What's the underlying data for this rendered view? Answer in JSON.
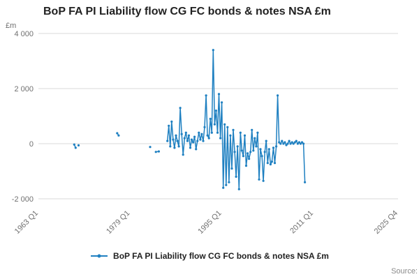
{
  "header": {
    "title": "BoP FA PI Liability flow CG FC bonds & notes NSA £m"
  },
  "legend": {
    "label": "BoP FA PI Liability flow CG FC bonds & notes NSA £m"
  },
  "footer": {
    "source_label": "Source:"
  },
  "chart_data": {
    "type": "line",
    "title": "BoP FA PI Liability flow CG FC bonds & notes NSA £m",
    "xlabel": "",
    "ylabel": "£m",
    "color": "#1f80c1",
    "grid_color": "#d9d9d9",
    "tick_text_color": "#707070",
    "x_domain": [
      1963,
      2025.75
    ],
    "ylim": [
      -2000,
      4000
    ],
    "legend_position": "bottom",
    "grid": "horizontal",
    "x_ticks": [
      {
        "v": 1963,
        "label": "1963 Q1"
      },
      {
        "v": 1979,
        "label": "1979 Q1"
      },
      {
        "v": 1995,
        "label": "1995 Q1"
      },
      {
        "v": 2011,
        "label": "2011 Q1"
      },
      {
        "v": 2025.75,
        "label": "2025 Q4"
      }
    ],
    "y_ticks": [
      {
        "v": 4000,
        "label": "4 000"
      },
      {
        "v": 2000,
        "label": "2 000"
      },
      {
        "v": 0,
        "label": "0"
      },
      {
        "v": -2000,
        "label": "-2 000"
      }
    ],
    "series_name": "BoP FA PI Liability flow CG FC bonds & notes NSA £m",
    "segments": [
      [
        [
          1969.25,
          -30
        ],
        [
          1969.5,
          -150
        ]
      ],
      [
        [
          1970.0,
          -60
        ]
      ],
      [
        [
          1976.75,
          380
        ],
        [
          1977.0,
          300
        ]
      ],
      [
        [
          1982.5,
          -120
        ]
      ],
      [
        [
          1983.5,
          -300
        ],
        [
          1984.0,
          -280
        ]
      ],
      [
        [
          1985.5,
          100
        ],
        [
          1985.75,
          650
        ],
        [
          1986,
          -100
        ],
        [
          1986.25,
          800
        ],
        [
          1986.5,
          150
        ],
        [
          1986.75,
          -150
        ],
        [
          1987,
          300
        ],
        [
          1987.25,
          100
        ],
        [
          1987.5,
          -100
        ],
        [
          1987.75,
          1300
        ],
        [
          1988,
          350
        ],
        [
          1988.25,
          -400
        ],
        [
          1988.5,
          200
        ],
        [
          1988.75,
          400
        ],
        [
          1989,
          100
        ],
        [
          1989.25,
          300
        ],
        [
          1989.5,
          -150
        ],
        [
          1989.75,
          150
        ],
        [
          1990,
          50
        ],
        [
          1990.25,
          250
        ],
        [
          1990.5,
          -200
        ],
        [
          1990.75,
          100
        ],
        [
          1991,
          400
        ],
        [
          1991.25,
          150
        ],
        [
          1991.5,
          350
        ],
        [
          1991.75,
          100
        ],
        [
          1992,
          600
        ],
        [
          1992.25,
          1750
        ],
        [
          1992.5,
          300
        ],
        [
          1992.75,
          200
        ],
        [
          1993,
          900
        ],
        [
          1993.25,
          400
        ],
        [
          1993.5,
          3400
        ],
        [
          1993.75,
          700
        ],
        [
          1994,
          1200
        ],
        [
          1994.25,
          400
        ],
        [
          1994.5,
          1800
        ],
        [
          1994.75,
          200
        ],
        [
          1995,
          1500
        ],
        [
          1995.25,
          -1600
        ],
        [
          1995.5,
          700
        ],
        [
          1995.75,
          -1500
        ],
        [
          1996,
          600
        ],
        [
          1996.25,
          -1400
        ],
        [
          1996.5,
          300
        ],
        [
          1996.75,
          -900
        ],
        [
          1997,
          500
        ],
        [
          1997.25,
          -300
        ],
        [
          1997.5,
          -1200
        ],
        [
          1997.75,
          -100
        ],
        [
          1998,
          -1650
        ],
        [
          1998.25,
          400
        ],
        [
          1998.5,
          -250
        ],
        [
          1998.75,
          -450
        ],
        [
          1999,
          300
        ],
        [
          1999.25,
          -800
        ],
        [
          1999.5,
          -350
        ],
        [
          1999.75,
          -550
        ],
        [
          2000,
          -300
        ],
        [
          2000.25,
          500
        ],
        [
          2000.5,
          -250
        ],
        [
          2000.75,
          200
        ],
        [
          2001,
          -100
        ],
        [
          2001.25,
          400
        ],
        [
          2001.5,
          -1300
        ],
        [
          2001.75,
          -200
        ],
        [
          2002,
          -450
        ],
        [
          2002.25,
          -1350
        ],
        [
          2002.5,
          -300
        ],
        [
          2002.75,
          100
        ],
        [
          2003,
          -700
        ],
        [
          2003.25,
          -200
        ],
        [
          2003.5,
          -750
        ],
        [
          2003.75,
          -650
        ],
        [
          2004,
          -150
        ],
        [
          2004.25,
          -700
        ],
        [
          2004.5,
          -100
        ],
        [
          2004.75,
          1750
        ],
        [
          2005,
          50
        ],
        [
          2005.25,
          0
        ],
        [
          2005.5,
          100
        ],
        [
          2005.75,
          0
        ],
        [
          2006,
          50
        ],
        [
          2006.25,
          -50
        ],
        [
          2006.5,
          0
        ],
        [
          2006.75,
          100
        ],
        [
          2007,
          0
        ],
        [
          2007.25,
          50
        ],
        [
          2007.5,
          0
        ],
        [
          2007.75,
          50
        ],
        [
          2008,
          100
        ],
        [
          2008.25,
          0
        ],
        [
          2008.5,
          50
        ],
        [
          2008.75,
          0
        ],
        [
          2009,
          50
        ],
        [
          2009.25,
          0
        ],
        [
          2009.5,
          -1400
        ]
      ]
    ]
  }
}
